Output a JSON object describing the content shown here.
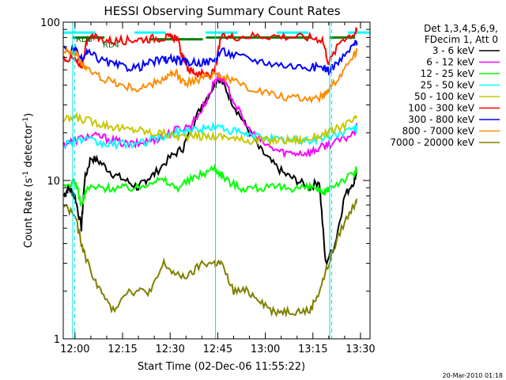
{
  "chart_data": {
    "type": "line",
    "title": "HESSI Observing Summary Count Rates",
    "xlabel": "Start Time (02-Dec-06 11:55:22)",
    "ylabel": "Count Rate (s⁻¹ detector⁻¹)",
    "ylabel_parts": {
      "pre": "Count Rate (s",
      "sup1": "-1",
      "mid": " detector",
      "sup2": "-1",
      "post": ")"
    },
    "yscale": "log",
    "ylim": [
      1,
      100
    ],
    "xlim_minutes": [
      -3.7,
      35.0
    ],
    "x_ticks": [
      {
        "minute": 0,
        "label": "12:00"
      },
      {
        "minute": 15,
        "label": "12:15"
      },
      {
        "minute": 30,
        "label": "12:30"
      },
      {
        "minute": 45,
        "label": "12:45"
      },
      {
        "minute": 60,
        "label": "13:00"
      },
      {
        "minute": 75,
        "label": "13:15"
      },
      {
        "minute": 90,
        "label": "13:30"
      }
    ],
    "y_ticks": [
      {
        "value": 1,
        "label": "1"
      },
      {
        "value": 10,
        "label": "10"
      },
      {
        "value": 100,
        "label": "100"
      }
    ],
    "legend_header": [
      "Det 1,3,4,5,6,9,",
      "FDecim 1, Att 0"
    ],
    "legend_position": "right",
    "stamp": "20-Mar-2010 01:18",
    "annotations": {
      "rd0": "RD0",
      "rd4": "RD4"
    },
    "series": [
      {
        "name": "3 - 6 keV",
        "color": "#000000",
        "points": [
          [
            -3.5,
            8
          ],
          [
            -2,
            9
          ],
          [
            0,
            8
          ],
          [
            2,
            5
          ],
          [
            3,
            10
          ],
          [
            5,
            14
          ],
          [
            8,
            13
          ],
          [
            12,
            11
          ],
          [
            16,
            10
          ],
          [
            20,
            9
          ],
          [
            22,
            10
          ],
          [
            25,
            11
          ],
          [
            30,
            14
          ],
          [
            34,
            16
          ],
          [
            36,
            20
          ],
          [
            40,
            30
          ],
          [
            44,
            40
          ],
          [
            45,
            45
          ],
          [
            47,
            40
          ],
          [
            50,
            30
          ],
          [
            54,
            22
          ],
          [
            58,
            16
          ],
          [
            62,
            13
          ],
          [
            66,
            11
          ],
          [
            70,
            10
          ],
          [
            74,
            9
          ],
          [
            77,
            10
          ],
          [
            79,
            3
          ],
          [
            82,
            4
          ],
          [
            85,
            8
          ],
          [
            88,
            10
          ],
          [
            89,
            12
          ]
        ]
      },
      {
        "name": "6 - 12 keV",
        "color": "#ff00ff",
        "points": [
          [
            -3.5,
            17
          ],
          [
            0,
            18
          ],
          [
            4,
            19
          ],
          [
            8,
            19
          ],
          [
            12,
            18
          ],
          [
            16,
            17
          ],
          [
            20,
            17
          ],
          [
            24,
            18
          ],
          [
            28,
            19
          ],
          [
            32,
            21
          ],
          [
            36,
            22
          ],
          [
            40,
            28
          ],
          [
            44,
            42
          ],
          [
            45,
            46
          ],
          [
            47,
            42
          ],
          [
            50,
            32
          ],
          [
            54,
            22
          ],
          [
            58,
            18
          ],
          [
            62,
            16
          ],
          [
            66,
            15
          ],
          [
            70,
            15
          ],
          [
            74,
            15
          ],
          [
            77,
            16
          ],
          [
            80,
            17
          ],
          [
            84,
            18
          ],
          [
            88,
            20
          ],
          [
            89,
            22
          ]
        ]
      },
      {
        "name": "12 - 25 keV",
        "color": "#00ff00",
        "points": [
          [
            -3.5,
            9
          ],
          [
            0,
            10
          ],
          [
            2,
            7
          ],
          [
            4,
            9
          ],
          [
            8,
            9
          ],
          [
            12,
            9
          ],
          [
            16,
            9
          ],
          [
            20,
            9
          ],
          [
            24,
            10
          ],
          [
            28,
            10
          ],
          [
            32,
            9
          ],
          [
            36,
            10
          ],
          [
            40,
            11
          ],
          [
            44,
            12
          ],
          [
            46,
            11
          ],
          [
            48,
            10
          ],
          [
            52,
            9
          ],
          [
            56,
            9
          ],
          [
            60,
            9
          ],
          [
            64,
            9
          ],
          [
            68,
            9
          ],
          [
            72,
            9
          ],
          [
            76,
            9
          ],
          [
            78,
            8
          ],
          [
            80,
            9
          ],
          [
            84,
            10
          ],
          [
            88,
            11
          ],
          [
            89,
            12
          ]
        ]
      },
      {
        "name": "25 - 50 keV",
        "color": "#00ffff",
        "points": [
          [
            -3.5,
            17
          ],
          [
            0,
            18
          ],
          [
            4,
            18
          ],
          [
            8,
            17
          ],
          [
            12,
            17
          ],
          [
            16,
            17
          ],
          [
            20,
            17
          ],
          [
            24,
            18
          ],
          [
            28,
            19
          ],
          [
            32,
            20
          ],
          [
            36,
            21
          ],
          [
            40,
            21
          ],
          [
            44,
            22
          ],
          [
            48,
            21
          ],
          [
            52,
            20
          ],
          [
            56,
            19
          ],
          [
            60,
            19
          ],
          [
            64,
            18
          ],
          [
            68,
            18
          ],
          [
            72,
            18
          ],
          [
            76,
            18
          ],
          [
            80,
            19
          ],
          [
            84,
            20
          ],
          [
            88,
            21
          ],
          [
            89,
            22
          ]
        ]
      },
      {
        "name": "50 - 100 keV",
        "color": "#c8c800",
        "points": [
          [
            -3.5,
            24
          ],
          [
            0,
            25
          ],
          [
            4,
            24
          ],
          [
            8,
            23
          ],
          [
            12,
            22
          ],
          [
            16,
            21
          ],
          [
            20,
            21
          ],
          [
            24,
            20
          ],
          [
            28,
            20
          ],
          [
            32,
            19
          ],
          [
            36,
            19
          ],
          [
            40,
            19
          ],
          [
            44,
            19
          ],
          [
            48,
            19
          ],
          [
            52,
            18
          ],
          [
            56,
            18
          ],
          [
            60,
            18
          ],
          [
            64,
            18
          ],
          [
            68,
            18
          ],
          [
            72,
            18
          ],
          [
            76,
            19
          ],
          [
            80,
            20
          ],
          [
            84,
            22
          ],
          [
            88,
            24
          ],
          [
            89,
            26
          ]
        ]
      },
      {
        "name": "100 - 300 keV",
        "color": "#ff0000",
        "points": [
          [
            -3.5,
            60
          ],
          [
            0,
            58
          ],
          [
            2,
            50
          ],
          [
            4,
            82
          ],
          [
            8,
            78
          ],
          [
            12,
            76
          ],
          [
            16,
            77
          ],
          [
            20,
            78
          ],
          [
            24,
            79
          ],
          [
            28,
            80
          ],
          [
            30,
            80
          ],
          [
            32,
            80
          ],
          [
            34,
            60
          ],
          [
            36,
            50
          ],
          [
            38,
            48
          ],
          [
            40,
            47
          ],
          [
            42,
            46
          ],
          [
            44,
            48
          ],
          [
            46,
            80
          ],
          [
            50,
            81
          ],
          [
            56,
            82
          ],
          [
            62,
            82
          ],
          [
            68,
            81
          ],
          [
            74,
            80
          ],
          [
            78,
            78
          ],
          [
            80,
            55
          ],
          [
            84,
            78
          ],
          [
            88,
            85
          ],
          [
            89,
            88
          ]
        ]
      },
      {
        "name": "300 - 800 keV",
        "color": "#0000ff",
        "points": [
          [
            -3.5,
            68
          ],
          [
            0,
            66
          ],
          [
            2,
            58
          ],
          [
            4,
            64
          ],
          [
            8,
            58
          ],
          [
            12,
            54
          ],
          [
            16,
            52
          ],
          [
            20,
            52
          ],
          [
            24,
            56
          ],
          [
            28,
            58
          ],
          [
            30,
            58
          ],
          [
            32,
            58
          ],
          [
            34,
            56
          ],
          [
            36,
            56
          ],
          [
            40,
            56
          ],
          [
            44,
            57
          ],
          [
            46,
            66
          ],
          [
            50,
            62
          ],
          [
            56,
            58
          ],
          [
            62,
            55
          ],
          [
            68,
            53
          ],
          [
            74,
            52
          ],
          [
            78,
            52
          ],
          [
            80,
            50
          ],
          [
            84,
            58
          ],
          [
            88,
            72
          ],
          [
            89,
            76
          ]
        ]
      },
      {
        "name": "800 - 7000 keV",
        "color": "#ff8c00",
        "points": [
          [
            -3.5,
            68
          ],
          [
            0,
            64
          ],
          [
            2,
            56
          ],
          [
            4,
            50
          ],
          [
            8,
            45
          ],
          [
            12,
            42
          ],
          [
            16,
            39
          ],
          [
            20,
            38
          ],
          [
            24,
            40
          ],
          [
            28,
            44
          ],
          [
            30,
            46
          ],
          [
            32,
            47
          ],
          [
            34,
            42
          ],
          [
            36,
            42
          ],
          [
            40,
            44
          ],
          [
            44,
            48
          ],
          [
            46,
            46
          ],
          [
            50,
            42
          ],
          [
            56,
            38
          ],
          [
            62,
            35
          ],
          [
            68,
            33
          ],
          [
            74,
            33
          ],
          [
            78,
            34
          ],
          [
            80,
            38
          ],
          [
            84,
            48
          ],
          [
            88,
            62
          ],
          [
            89,
            68
          ]
        ]
      },
      {
        "name": "7000 - 20000 keV",
        "color": "#808000",
        "points": [
          [
            -3.5,
            7
          ],
          [
            0,
            6
          ],
          [
            2,
            4
          ],
          [
            4,
            3
          ],
          [
            8,
            2
          ],
          [
            12,
            1.5
          ],
          [
            16,
            2
          ],
          [
            20,
            2
          ],
          [
            24,
            2
          ],
          [
            28,
            3
          ],
          [
            32,
            2.5
          ],
          [
            36,
            2.5
          ],
          [
            40,
            3
          ],
          [
            44,
            3
          ],
          [
            46,
            3
          ],
          [
            50,
            2
          ],
          [
            54,
            2
          ],
          [
            58,
            1.8
          ],
          [
            62,
            1.5
          ],
          [
            66,
            1.5
          ],
          [
            70,
            1.5
          ],
          [
            74,
            1.5
          ],
          [
            77,
            2
          ],
          [
            80,
            3
          ],
          [
            84,
            5
          ],
          [
            88,
            7
          ],
          [
            89,
            8
          ]
        ]
      }
    ]
  }
}
